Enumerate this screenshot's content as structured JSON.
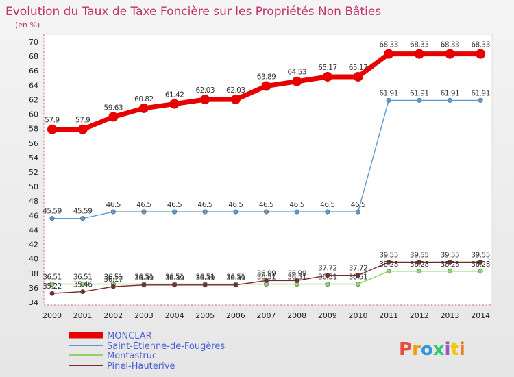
{
  "chart_data": {
    "type": "line",
    "title": "Evolution du Taux de Taxe Foncière sur les Propriétés Non Bâties",
    "ylabel": "(en %)",
    "xlabel": "",
    "x": [
      "2000",
      "2001",
      "2002",
      "2003",
      "2004",
      "2005",
      "2006",
      "2007",
      "2008",
      "2009",
      "2010",
      "2011",
      "2012",
      "2013",
      "2014"
    ],
    "ylim": [
      34,
      70
    ],
    "yticks": [
      34,
      36,
      38,
      40,
      42,
      44,
      46,
      48,
      50,
      52,
      54,
      56,
      58,
      60,
      62,
      64,
      66,
      68,
      70
    ],
    "grid": false,
    "legend_position": "bottom-left",
    "series": [
      {
        "name": "MONCLAR",
        "color": "#e60000",
        "values": [
          57.9,
          57.9,
          59.63,
          60.82,
          61.42,
          62.03,
          62.03,
          63.89,
          64.53,
          65.17,
          65.17,
          68.33,
          68.33,
          68.33,
          68.33
        ],
        "labels": [
          "57.9",
          "57.9",
          "59.63",
          "60.82",
          "61.42",
          "62.03",
          "62.03",
          "63.89",
          "64.53",
          "65.17",
          "65.17",
          "68.33",
          "68.33",
          "68.33",
          "68.33"
        ]
      },
      {
        "name": "Saint-Étienne-de-Fougères",
        "color": "#5b9bd5",
        "values": [
          45.59,
          45.59,
          46.5,
          46.5,
          46.5,
          46.5,
          46.5,
          46.5,
          46.5,
          46.5,
          46.5,
          61.91,
          61.91,
          61.91,
          61.91
        ],
        "labels": [
          "45.59",
          "45.59",
          "46.5",
          "46.5",
          "46.5",
          "46.5",
          "46.5",
          "46.5",
          "46.5",
          "46.5",
          "46.5",
          "61.91",
          "61.91",
          "61.91",
          "61.91"
        ]
      },
      {
        "name": "Montastruc",
        "color": "#8fd46a",
        "values": [
          36.51,
          36.51,
          36.51,
          36.51,
          36.51,
          36.51,
          36.51,
          36.51,
          36.51,
          36.51,
          36.51,
          38.28,
          38.28,
          38.28,
          38.28
        ],
        "labels": [
          "36.51",
          "36.51",
          "36.51",
          "36.51",
          "36.51",
          "36.51",
          "36.51",
          "36.51",
          "36.51",
          "36.51",
          "36.51",
          "38.28",
          "38.28",
          "38.28",
          "38.28"
        ]
      },
      {
        "name": "Pinel-Hauterive",
        "color": "#7a2a2a",
        "values": [
          35.22,
          35.46,
          36.17,
          36.39,
          36.39,
          36.39,
          36.39,
          36.99,
          36.99,
          37.72,
          37.72,
          39.55,
          39.55,
          39.55,
          39.55
        ],
        "labels": [
          "35.22",
          "35.46",
          "36.17",
          "36.39",
          "36.39",
          "36.39",
          "36.39",
          "36.99",
          "36.99",
          "37.72",
          "37.72",
          "39.55",
          "39.55",
          "39.55",
          "39.55"
        ]
      }
    ]
  },
  "brand": {
    "text": "Proxiti",
    "colors": [
      "#e74c3c",
      "#f39c12",
      "#3498db",
      "#2ecc71",
      "#9b59b6",
      "#f1c40f",
      "#e67e22"
    ]
  }
}
